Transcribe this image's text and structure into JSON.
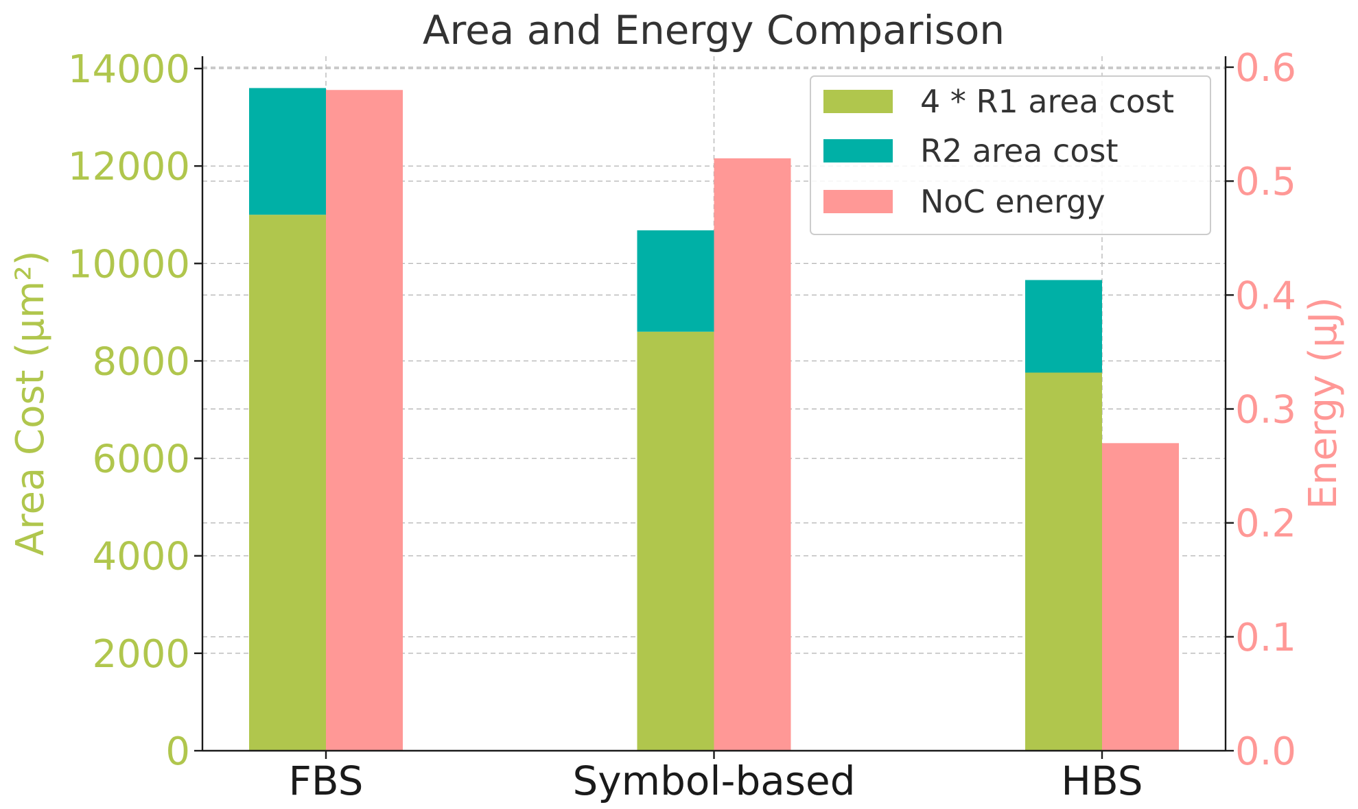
{
  "chart_data": {
    "type": "bar",
    "title": "Area and Energy Comparison",
    "categories": [
      "FBS",
      "Symbol-based",
      "HBS"
    ],
    "left_axis": {
      "label": "Area Cost (μm²)",
      "ylim": [
        0,
        14000
      ],
      "ticks": [
        "0",
        "2000",
        "4000",
        "6000",
        "8000",
        "10000",
        "12000",
        "14000"
      ],
      "color": "#b0c64d"
    },
    "right_axis": {
      "label": "Energy (μJ)",
      "ylim": [
        0.0,
        0.6
      ],
      "ticks": [
        "0.0",
        "0.1",
        "0.2",
        "0.3",
        "0.4",
        "0.5",
        "0.6"
      ],
      "color": "#ff9896"
    },
    "series": [
      {
        "name": "4 * R1 area cost",
        "axis": "left",
        "stack": "area",
        "color": "#b0c64d",
        "values": [
          11000,
          8600,
          7760
        ]
      },
      {
        "name": "R2 area cost",
        "axis": "left",
        "stack": "area",
        "color": "#00b0a6",
        "values": [
          2600,
          2080,
          1900
        ]
      },
      {
        "name": "NoC energy",
        "axis": "right",
        "stack": "energy",
        "color": "#ff9896",
        "values": [
          0.58,
          0.52,
          0.27
        ]
      }
    ],
    "legend_position": "top-right",
    "grid": true
  }
}
